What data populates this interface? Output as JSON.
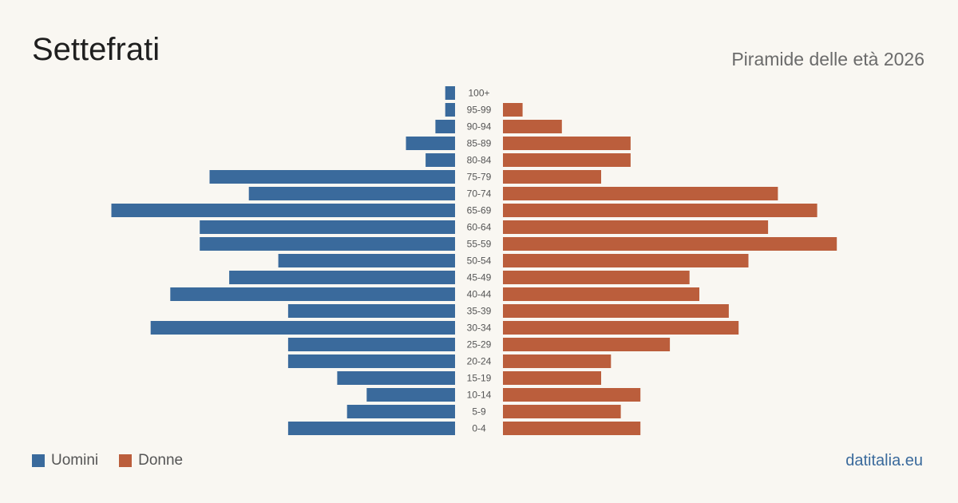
{
  "title": "Settefrati",
  "subtitle": "Piramide delle età 2026",
  "brand": "datitalia.eu",
  "colors": {
    "male": "#3a6a9c",
    "female": "#bb5e3c",
    "background": "#f9f7f2"
  },
  "legend": {
    "male_label": "Uomini",
    "female_label": "Donne"
  },
  "chart_data": {
    "type": "bar",
    "orientation": "horizontal-population-pyramid",
    "categories": [
      "100+",
      "95-99",
      "90-94",
      "85-89",
      "80-84",
      "75-79",
      "70-74",
      "65-69",
      "60-64",
      "55-59",
      "50-54",
      "45-49",
      "40-44",
      "35-39",
      "30-34",
      "25-29",
      "20-24",
      "15-19",
      "10-14",
      "5-9",
      "0-4"
    ],
    "series": [
      {
        "name": "Uomini",
        "values": [
          1,
          1,
          2,
          5,
          3,
          25,
          21,
          35,
          26,
          26,
          18,
          23,
          29,
          17,
          31,
          17,
          17,
          12,
          9,
          11,
          17
        ]
      },
      {
        "name": "Donne",
        "values": [
          0,
          2,
          6,
          13,
          13,
          10,
          28,
          32,
          27,
          34,
          25,
          19,
          20,
          23,
          24,
          17,
          11,
          10,
          14,
          12,
          14
        ]
      }
    ],
    "legend_position": "bottom-left",
    "grid": false
  }
}
